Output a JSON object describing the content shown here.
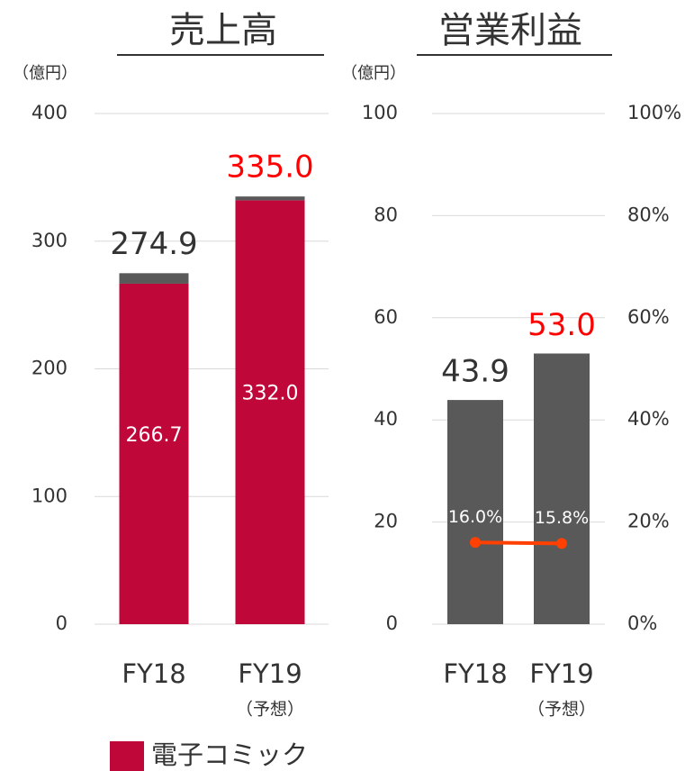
{
  "chart_data": [
    {
      "type": "bar",
      "stacked": true,
      "title": "売上高",
      "unit_label": "（億円）",
      "categories": [
        "FY18",
        "FY19"
      ],
      "category_notes": [
        null,
        "（予想）"
      ],
      "series": [
        {
          "name": "電子コミック",
          "color": "#c0073a",
          "values": [
            266.7,
            332.0
          ],
          "value_labels": [
            "266.7",
            "332.0"
          ]
        },
        {
          "color": "#595959",
          "values": [
            8.2,
            3.0
          ]
        }
      ],
      "totals": [
        274.9,
        335.0
      ],
      "total_labels": [
        "274.9",
        "335.0"
      ],
      "total_label_colors": [
        "#333333",
        "#ff0000"
      ],
      "ylim": [
        0,
        400
      ],
      "yticks": [
        0,
        100,
        200,
        300,
        400
      ],
      "grid": true,
      "legend": "bottom"
    },
    {
      "type": "bar",
      "title": "営業利益",
      "unit_label": "（億円）",
      "categories": [
        "FY18",
        "FY19"
      ],
      "category_notes": [
        null,
        "（予想）"
      ],
      "series": [
        {
          "color": "#595959",
          "values": [
            43.9,
            53.0
          ],
          "value_labels": [
            "43.9",
            "53.0"
          ],
          "value_label_colors": [
            "#333333",
            "#ff0000"
          ]
        },
        {
          "type": "line",
          "axis": "y2",
          "color": "#ff4000",
          "values": [
            16.0,
            15.8
          ],
          "value_labels": [
            "16.0%",
            "15.8%"
          ]
        }
      ],
      "ylim": [
        0,
        100
      ],
      "yticks": [
        0,
        20,
        40,
        60,
        80,
        100
      ],
      "y2lim": [
        0,
        100
      ],
      "y2ticks": [
        {
          "value": 0,
          "label": "0%"
        },
        {
          "value": 20,
          "label": "20%"
        },
        {
          "value": 40,
          "label": "40%"
        },
        {
          "value": 60,
          "label": "60%"
        },
        {
          "value": 80,
          "label": "80%"
        },
        {
          "value": 100,
          "label": "100%"
        }
      ],
      "grid": true
    }
  ]
}
